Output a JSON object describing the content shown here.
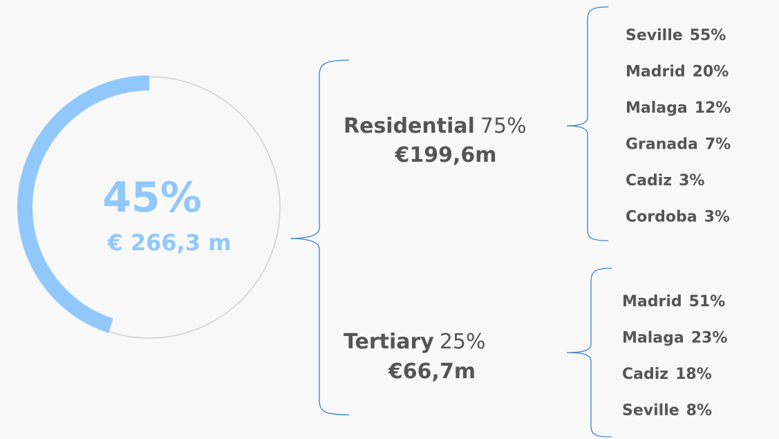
{
  "gauge": {
    "value": 45,
    "value_label": "45%",
    "amount": "€ 266,3 m"
  },
  "segments": [
    {
      "name": "Residential",
      "share": "75%",
      "amount": "€199,6m",
      "cities": [
        {
          "name": "Seville",
          "share": "55%"
        },
        {
          "name": "Madrid",
          "share": "20%"
        },
        {
          "name": "Malaga",
          "share": "12%"
        },
        {
          "name": "Granada",
          "share": "7%"
        },
        {
          "name": "Cadiz",
          "share": "3%"
        },
        {
          "name": "Cordoba",
          "share": "3%"
        }
      ]
    },
    {
      "name": "Tertiary",
      "share": "25%",
      "amount": "€66,7m",
      "cities": [
        {
          "name": "Madrid",
          "share": "51%"
        },
        {
          "name": "Malaga",
          "share": "23%"
        },
        {
          "name": "Cadiz",
          "share": "18%"
        },
        {
          "name": "Seville",
          "share": "8%"
        }
      ]
    }
  ]
}
